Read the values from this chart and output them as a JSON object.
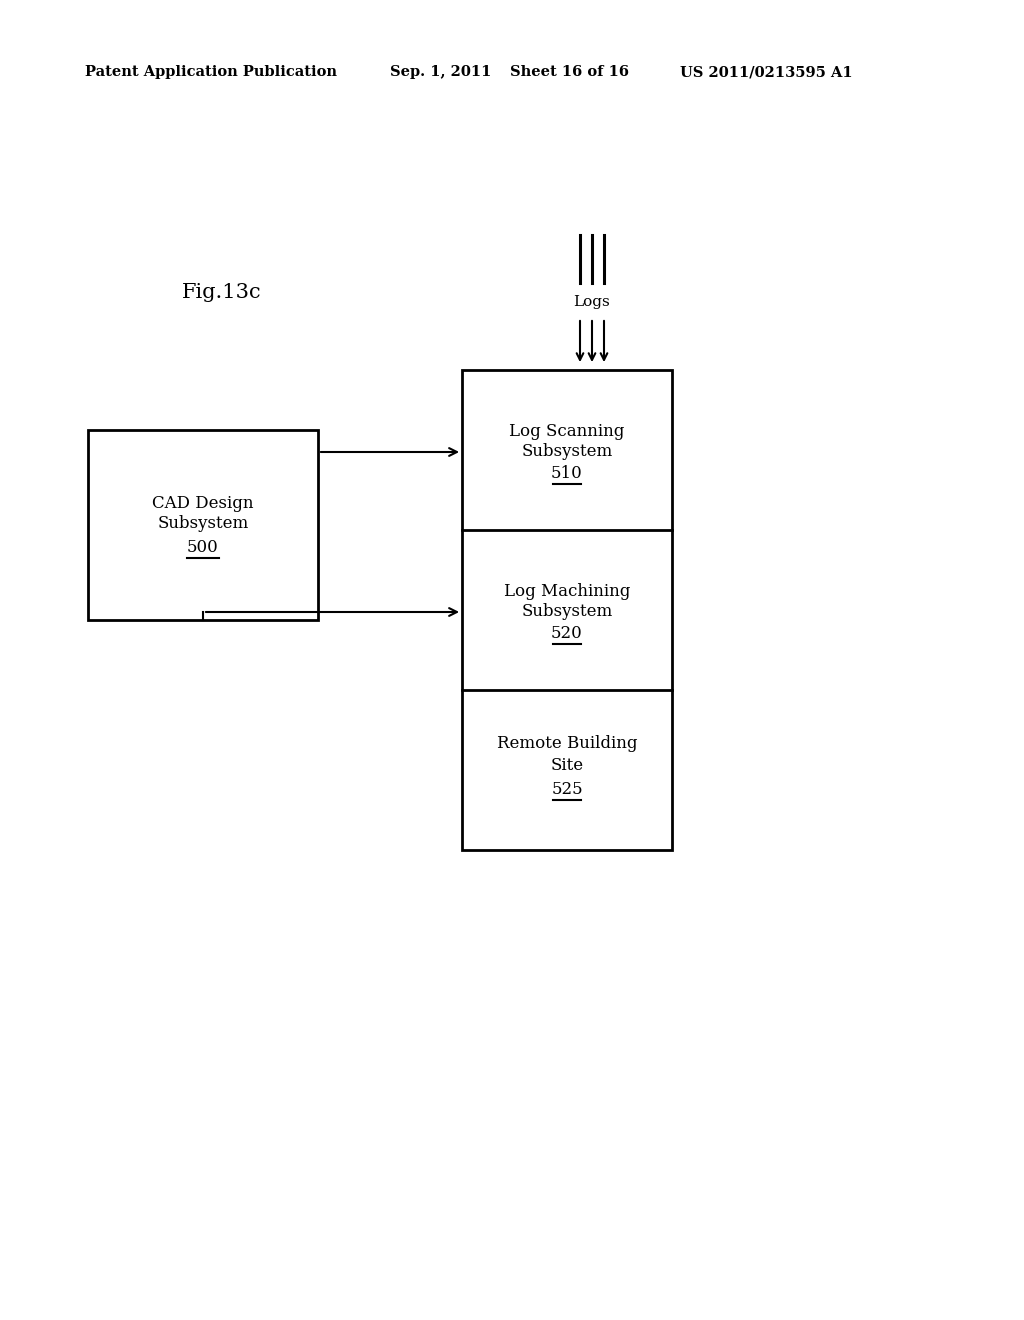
{
  "background_color": "#ffffff",
  "header_text": "Patent Application Publication",
  "header_date": "Sep. 1, 2011",
  "header_sheet": "Sheet 16 of 16",
  "header_patent": "US 2011/0213595 A1",
  "fig_label": "Fig.13c",
  "logs_label": "Logs",
  "cad_label1": "CAD Design",
  "cad_label2": "Subsystem",
  "cad_number": "500",
  "scan_label1": "Log Scanning",
  "scan_label2": "Subsystem",
  "scan_number": "510",
  "mach_label1": "Log Machining",
  "mach_label2": "Subsystem",
  "mach_number": "520",
  "remote_label1": "Remote Building",
  "remote_label2": "Site",
  "remote_number": "525",
  "font_size_header": 10.5,
  "font_size_fig": 15,
  "font_size_box": 12,
  "font_size_logs": 11
}
